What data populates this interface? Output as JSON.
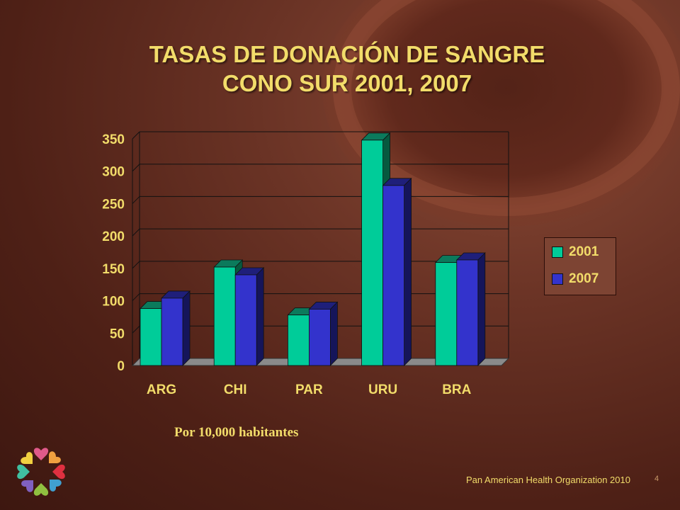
{
  "slide": {
    "title_line1": "TASAS DE DONACIÓN DE SANGRE",
    "title_line2": "CONO SUR 2001, 2007",
    "footnote": "Por 10,000 habitantes",
    "footer": "Pan American Health Organization 2010",
    "page_number": "4"
  },
  "colors": {
    "series_2001": "#00cc99",
    "series_2007": "#3333cc",
    "text": "#f2dc6a"
  },
  "chart_data": {
    "type": "bar",
    "categories": [
      "ARG",
      "CHI",
      "PAR",
      "URU",
      "BRA"
    ],
    "series": [
      {
        "name": "2001",
        "values": [
          88,
          152,
          78,
          348,
          159
        ]
      },
      {
        "name": "2007",
        "values": [
          104,
          140,
          87,
          278,
          163
        ]
      }
    ],
    "yticks": [
      "0",
      "50",
      "100",
      "150",
      "200",
      "250",
      "300",
      "350"
    ],
    "ylim": [
      0,
      350
    ],
    "grid": true,
    "legend": "right",
    "title": "TASAS DE DONACIÓN DE SANGRE CONO SUR 2001, 2007",
    "xlabel": "",
    "ylabel": ""
  }
}
